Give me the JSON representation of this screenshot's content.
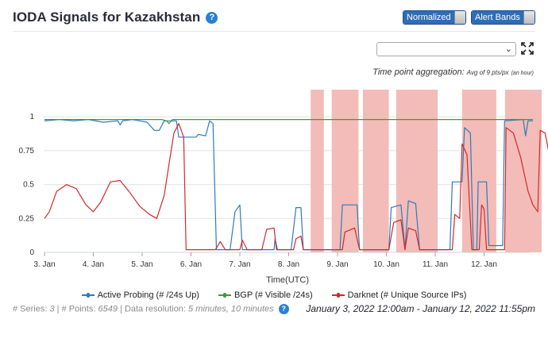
{
  "header": {
    "title": "IODA Signals for Kazakhstan",
    "help_icon": "?"
  },
  "controls": {
    "normalized_label": "Normalized",
    "alert_bands_label": "Alert Bands",
    "select_value": "",
    "select_chevron": "⌄"
  },
  "aggregation": {
    "label": "Time point aggregation:",
    "value": "Avg of 9 pts/px",
    "unit": "(an hour)"
  },
  "colors": {
    "active_probing": "#2c7bbf",
    "bgp": "#3a9b3a",
    "darknet": "#d62728",
    "alert_band": "#f2b8b4",
    "brand": "#2f6db5"
  },
  "chart_data": {
    "type": "line",
    "xlabel": "Time(UTC)",
    "x_ticks": [
      "3. Jan",
      "4. Jan",
      "5. Jan",
      "6. Jan",
      "7. Jan",
      "8. Jan",
      "9. Jan",
      "10. Jan",
      "11. Jan",
      "12. Jan"
    ],
    "y_ticks": [
      "0",
      "0.25",
      "0.5",
      "0.75",
      "1"
    ],
    "ylim": [
      0,
      1.2
    ],
    "xlim_days": [
      0,
      10
    ],
    "alert_bands": [
      [
        5.45,
        5.72
      ],
      [
        5.88,
        6.43
      ],
      [
        6.52,
        7.05
      ],
      [
        7.2,
        8.05
      ],
      [
        8.55,
        9.25
      ],
      [
        9.43,
        10.18
      ]
    ],
    "series": [
      {
        "name": "Active Probing (# /24s Up)",
        "points": [
          [
            0,
            0.97
          ],
          [
            0.3,
            0.98
          ],
          [
            0.6,
            0.97
          ],
          [
            0.9,
            0.98
          ],
          [
            1.2,
            0.96
          ],
          [
            1.5,
            0.97
          ],
          [
            1.55,
            0.94
          ],
          [
            1.6,
            0.97
          ],
          [
            1.8,
            0.98
          ],
          [
            1.95,
            0.97
          ],
          [
            2.1,
            0.96
          ],
          [
            2.25,
            0.9
          ],
          [
            2.35,
            0.9
          ],
          [
            2.45,
            0.97
          ],
          [
            2.7,
            0.97
          ],
          [
            2.75,
            0.85
          ],
          [
            3.1,
            0.85
          ],
          [
            3.15,
            0.87
          ],
          [
            3.3,
            0.86
          ],
          [
            3.38,
            0.97
          ],
          [
            3.45,
            0.95
          ],
          [
            3.52,
            0.02
          ],
          [
            3.8,
            0.02
          ],
          [
            3.9,
            0.3
          ],
          [
            4.0,
            0.35
          ],
          [
            4.05,
            0.02
          ],
          [
            4.7,
            0.02
          ],
          [
            4.72,
            0.1
          ],
          [
            4.77,
            0.02
          ],
          [
            5.05,
            0.02
          ],
          [
            5.15,
            0.33
          ],
          [
            5.25,
            0.33
          ],
          [
            5.3,
            0.02
          ],
          [
            6.05,
            0.02
          ],
          [
            6.1,
            0.35
          ],
          [
            6.4,
            0.35
          ],
          [
            6.45,
            0.02
          ],
          [
            7.05,
            0.02
          ],
          [
            7.1,
            0.33
          ],
          [
            7.3,
            0.35
          ],
          [
            7.38,
            0.02
          ],
          [
            7.45,
            0.38
          ],
          [
            7.6,
            0.36
          ],
          [
            7.68,
            0.02
          ],
          [
            8.3,
            0.02
          ],
          [
            8.35,
            0.52
          ],
          [
            8.55,
            0.52
          ],
          [
            8.6,
            0.92
          ],
          [
            8.72,
            0.88
          ],
          [
            8.78,
            0.02
          ],
          [
            8.85,
            0.02
          ],
          [
            8.88,
            0.52
          ],
          [
            9.05,
            0.52
          ],
          [
            9.1,
            0.05
          ],
          [
            9.3,
            0.05
          ],
          [
            9.38,
            0.05
          ],
          [
            9.42,
            0.97
          ],
          [
            9.8,
            0.98
          ],
          [
            9.85,
            0.86
          ],
          [
            9.9,
            0.97
          ],
          [
            10,
            0.97
          ]
        ]
      },
      {
        "name": "BGP (# Visible /24s)",
        "points": [
          [
            0,
            0.98
          ],
          [
            2.4,
            0.98
          ],
          [
            2.5,
            0.97
          ],
          [
            2.55,
            0.95
          ],
          [
            2.62,
            0.98
          ],
          [
            10,
            0.98
          ]
        ]
      },
      {
        "name": "Darknet (# Unique Source IPs)",
        "points": [
          [
            0,
            0.25
          ],
          [
            0.1,
            0.3
          ],
          [
            0.25,
            0.45
          ],
          [
            0.45,
            0.5
          ],
          [
            0.65,
            0.47
          ],
          [
            0.85,
            0.35
          ],
          [
            1.0,
            0.3
          ],
          [
            1.15,
            0.37
          ],
          [
            1.35,
            0.52
          ],
          [
            1.55,
            0.53
          ],
          [
            1.75,
            0.44
          ],
          [
            1.95,
            0.34
          ],
          [
            2.15,
            0.28
          ],
          [
            2.3,
            0.25
          ],
          [
            2.45,
            0.42
          ],
          [
            2.55,
            0.65
          ],
          [
            2.65,
            0.88
          ],
          [
            2.75,
            0.95
          ],
          [
            2.85,
            0.85
          ],
          [
            2.9,
            0.02
          ],
          [
            3.5,
            0.02
          ],
          [
            3.6,
            0.08
          ],
          [
            3.7,
            0.02
          ],
          [
            4.0,
            0.02
          ],
          [
            4.05,
            0.09
          ],
          [
            4.15,
            0.02
          ],
          [
            4.45,
            0.02
          ],
          [
            4.55,
            0.17
          ],
          [
            4.7,
            0.18
          ],
          [
            4.75,
            0.02
          ],
          [
            5.1,
            0.02
          ],
          [
            5.15,
            0.1
          ],
          [
            5.25,
            0.12
          ],
          [
            5.3,
            0.02
          ],
          [
            6.1,
            0.02
          ],
          [
            6.15,
            0.15
          ],
          [
            6.35,
            0.18
          ],
          [
            6.45,
            0.02
          ],
          [
            7.05,
            0.02
          ],
          [
            7.15,
            0.22
          ],
          [
            7.3,
            0.24
          ],
          [
            7.38,
            0.02
          ],
          [
            7.45,
            0.18
          ],
          [
            7.6,
            0.16
          ],
          [
            7.68,
            0.02
          ],
          [
            8.35,
            0.02
          ],
          [
            8.4,
            0.28
          ],
          [
            8.5,
            0.25
          ],
          [
            8.55,
            0.8
          ],
          [
            8.65,
            0.72
          ],
          [
            8.75,
            0.02
          ],
          [
            8.9,
            0.02
          ],
          [
            8.95,
            0.35
          ],
          [
            9.0,
            0.32
          ],
          [
            9.05,
            0.02
          ],
          [
            9.42,
            0.02
          ],
          [
            9.45,
            0.92
          ],
          [
            9.6,
            0.88
          ],
          [
            9.75,
            0.7
          ],
          [
            9.9,
            0.45
          ],
          [
            10.0,
            0.35
          ],
          [
            10.1,
            0.3
          ],
          [
            10.15,
            0.9
          ],
          [
            10.25,
            0.88
          ],
          [
            10.4,
            0.6
          ],
          [
            10.5,
            0.55
          ],
          [
            10.6,
            0.45
          ],
          [
            10.75,
            0.3
          ],
          [
            10.9,
            0.26
          ],
          [
            11.0,
            0.25
          ]
        ]
      }
    ]
  },
  "footer": {
    "series_label": "# Series:",
    "series_count": "3",
    "points_label": "# Points:",
    "points_count": "6549",
    "resolution_label": "Data resolution:",
    "resolution_value": "5 minutes, 10 minutes",
    "date_range": "January 3, 2022 12:00am - January 12, 2022 11:55pm"
  }
}
